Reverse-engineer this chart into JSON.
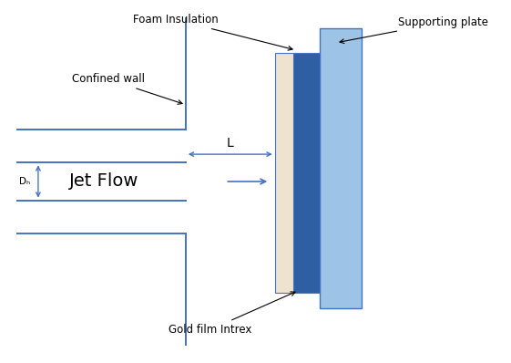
{
  "bg_color": "#ffffff",
  "wall_color": "#4472C4",
  "foam_color": "#EDE3CE",
  "dark_blue_color": "#2E5FA3",
  "light_blue_color": "#9DC3E6",
  "border_color": "#4472C4",
  "text_color": "#000000",
  "arrow_color": "#000000",
  "dim_arrow_color": "#4472C4",
  "jet_arrow_color": "#4472C4",
  "labels": {
    "foam_insulation": "Foam Insulation",
    "supporting_plate": "Supporting plate",
    "confined_wall": "Confined wall",
    "jet_flow": "Jet Flow",
    "gold_film": "Gold film Intrex",
    "L": "L",
    "Dh": "Dₕ"
  },
  "figure_size": [
    5.61,
    3.98
  ],
  "dpi": 100
}
